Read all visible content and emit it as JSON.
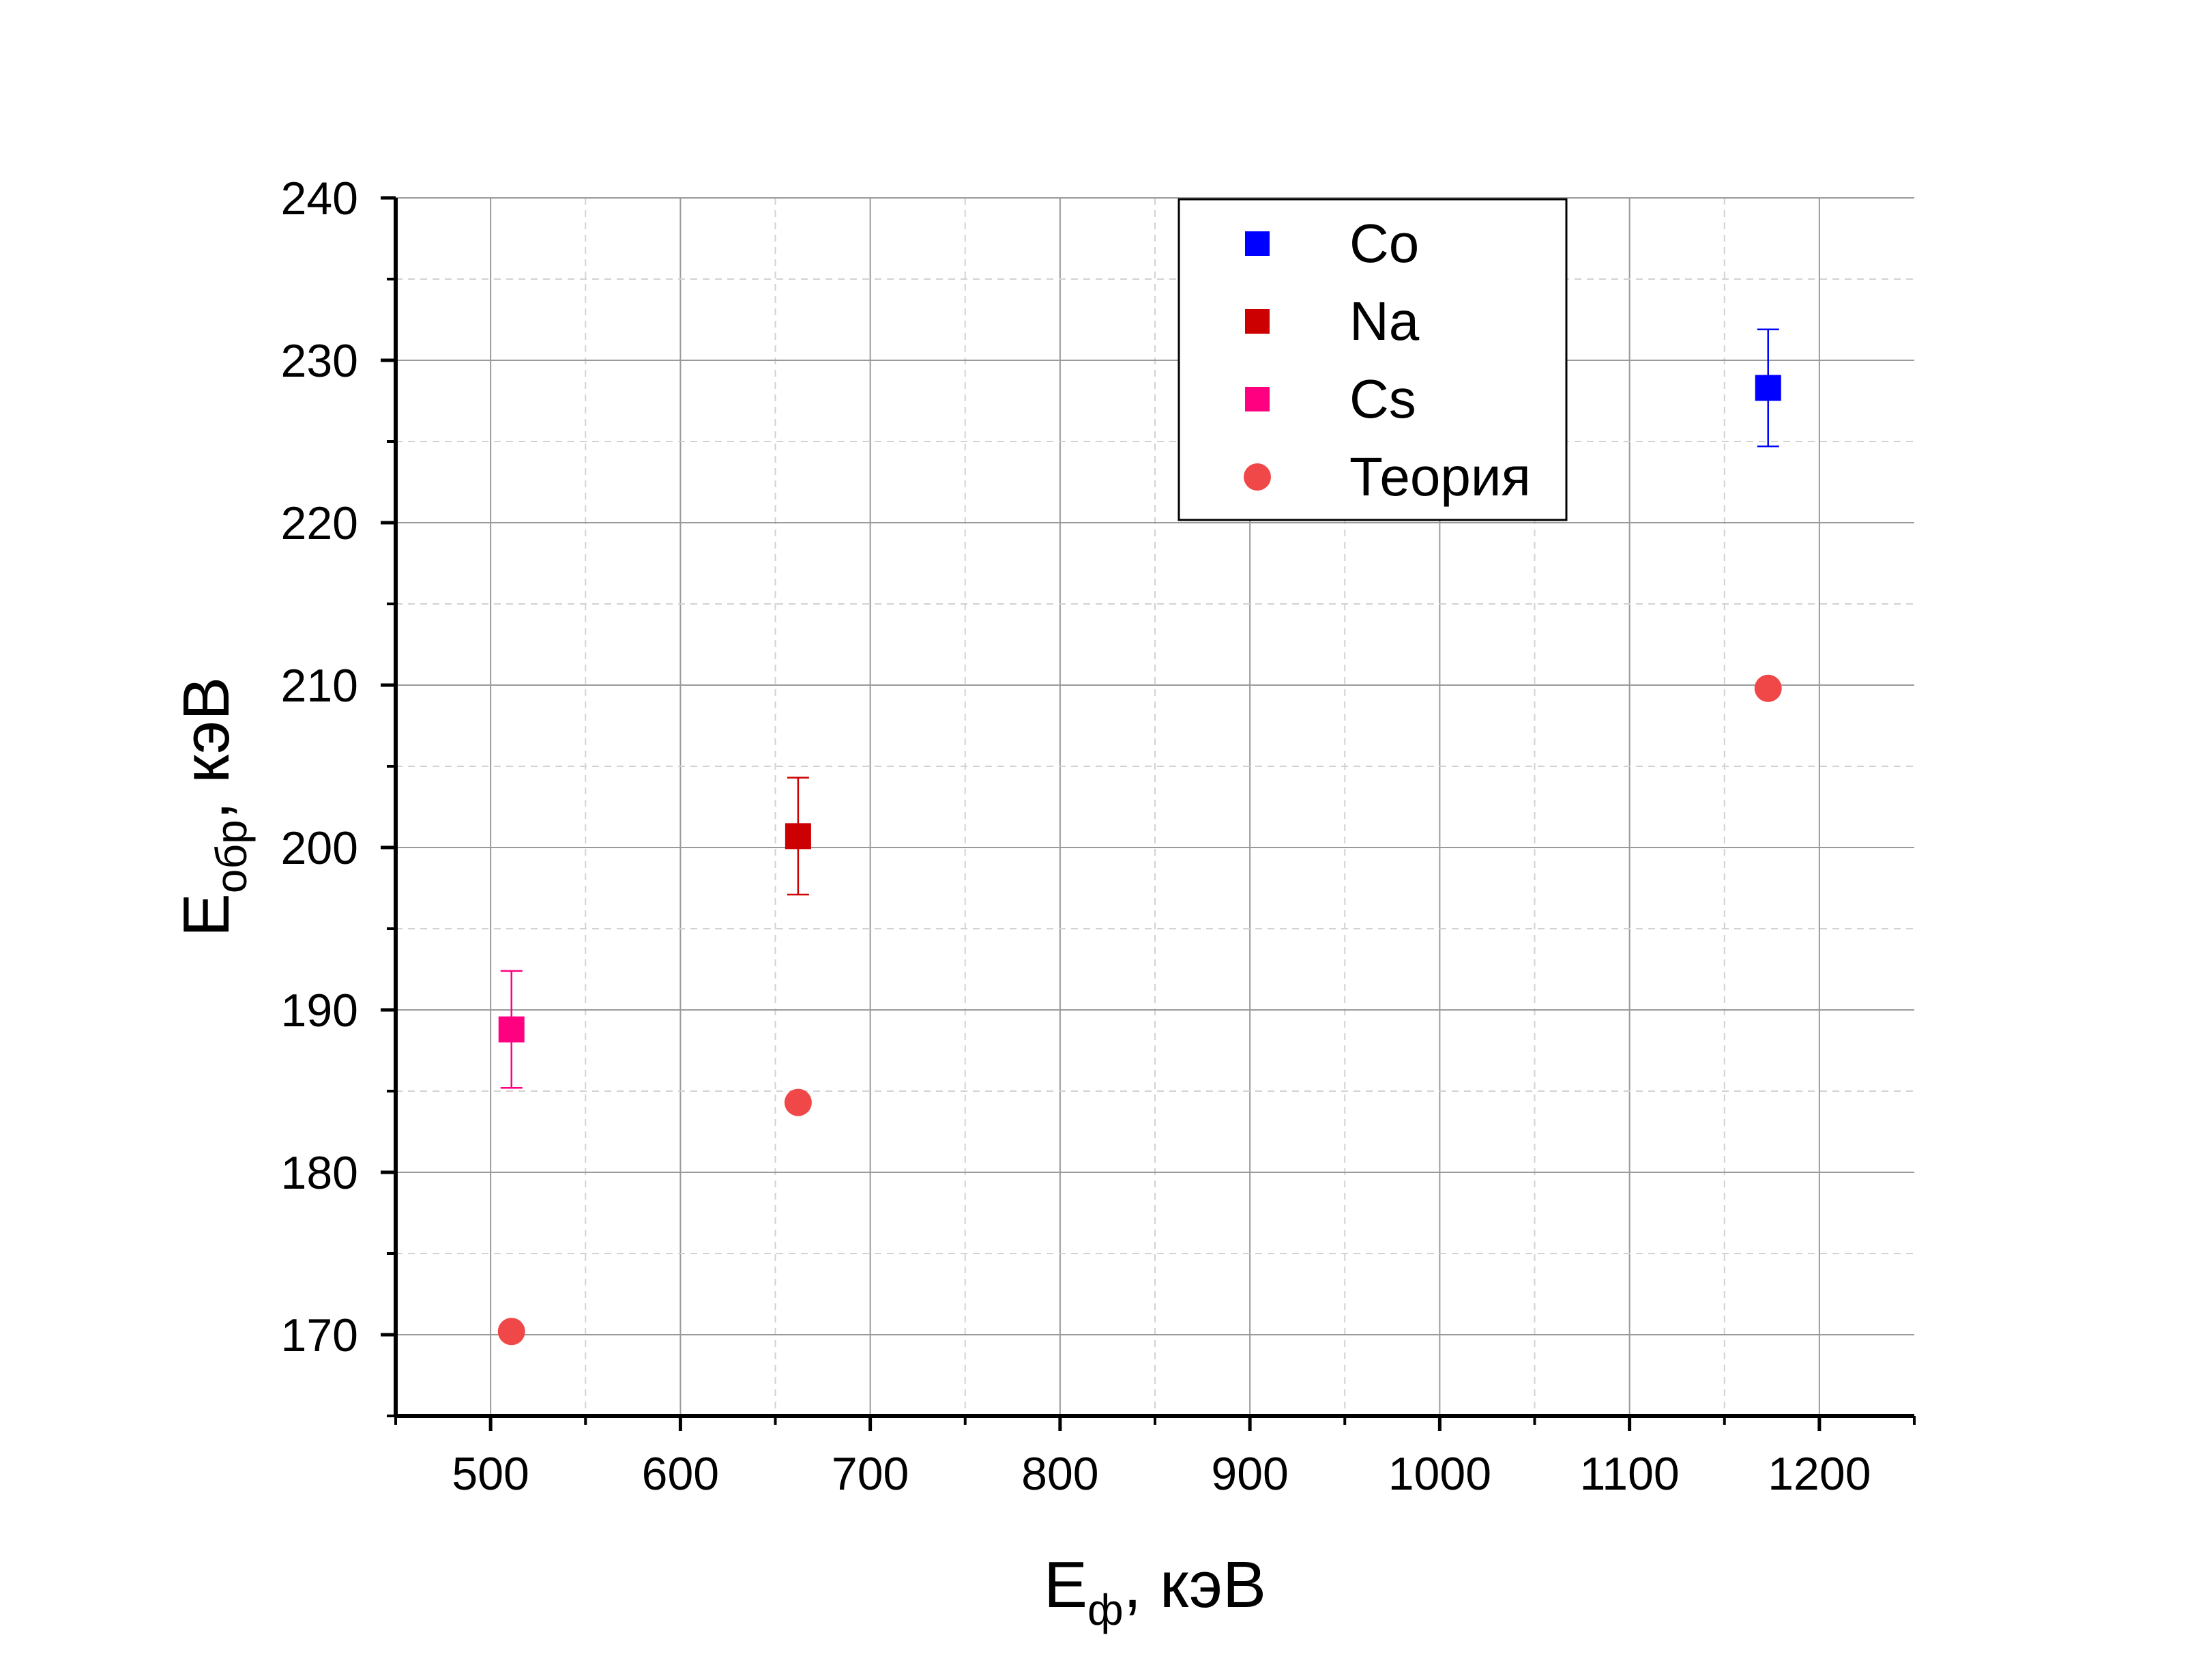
{
  "chart_data": {
    "type": "scatter",
    "title": "",
    "xlabel": {
      "main": "E",
      "sub": "ф",
      "rest": ", кэВ"
    },
    "ylabel": {
      "main": "E",
      "sub": "обр",
      "rest": ", кэВ"
    },
    "xlim": [
      450,
      1250
    ],
    "ylim": [
      165,
      240
    ],
    "xticks": [
      500,
      600,
      700,
      800,
      900,
      1000,
      1100,
      1200
    ],
    "yticks": [
      170,
      180,
      190,
      200,
      210,
      220,
      230,
      240
    ],
    "grid": true,
    "legend_position": "top-right",
    "series": [
      {
        "name": "Co",
        "marker": "square",
        "color": "#0000ff",
        "points": [
          {
            "x": 1173,
            "y": 228.3,
            "err": 3.6
          }
        ]
      },
      {
        "name": "Na",
        "marker": "square",
        "color": "#cc0000",
        "points": [
          {
            "x": 662,
            "y": 200.7,
            "err": 3.6
          }
        ]
      },
      {
        "name": "Cs",
        "marker": "square",
        "color": "#ff0080",
        "points": [
          {
            "x": 511,
            "y": 188.8,
            "err": 3.6
          }
        ]
      },
      {
        "name": "Теория",
        "marker": "circle",
        "color": "#f04848",
        "points": [
          {
            "x": 511,
            "y": 170.2
          },
          {
            "x": 662,
            "y": 184.3
          },
          {
            "x": 1173,
            "y": 209.8
          }
        ]
      }
    ]
  }
}
